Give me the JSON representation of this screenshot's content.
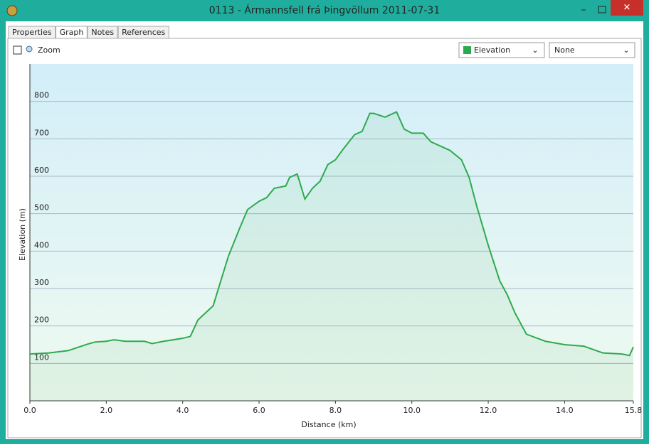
{
  "window": {
    "title": "0113 - Ármannsfell frá Þingvöllum 2011-07-31"
  },
  "tabs": [
    "Properties",
    "Graph",
    "Notes",
    "References"
  ],
  "toolbar": {
    "zoom": "Zoom",
    "series_select": "Elevation",
    "second_select": "None"
  },
  "chart_data": {
    "type": "line",
    "xlabel": "Distance  (km)",
    "ylabel": "Elevation (m)",
    "x": [
      0,
      0.5,
      1.0,
      1.5,
      1.7,
      2.0,
      2.2,
      2.5,
      3.0,
      3.2,
      3.5,
      4.0,
      4.2,
      4.4,
      4.8,
      5.0,
      5.2,
      5.5,
      5.7,
      6.0,
      6.2,
      6.4,
      6.7,
      6.8,
      7.0,
      7.2,
      7.4,
      7.6,
      7.8,
      8.0,
      8.2,
      8.5,
      8.7,
      8.9,
      9.0,
      9.3,
      9.6,
      9.8,
      10.0,
      10.3,
      10.5,
      11.0,
      11.3,
      11.5,
      11.7,
      12.0,
      12.3,
      12.5,
      12.7,
      13.0,
      13.5,
      14.0,
      14.5,
      15.0,
      15.5,
      15.7,
      15.8
    ],
    "series": [
      {
        "name": "Elevation",
        "color": "#2eaa4e",
        "values": [
          125,
          128,
          134,
          151,
          157,
          159,
          163,
          159,
          159,
          153,
          159,
          167,
          172,
          216,
          254,
          321,
          387,
          463,
          511,
          533,
          543,
          568,
          574,
          597,
          606,
          539,
          568,
          587,
          631,
          644,
          672,
          711,
          720,
          768,
          768,
          758,
          772,
          726,
          715,
          715,
          692,
          669,
          644,
          597,
          520,
          416,
          321,
          283,
          235,
          178,
          159,
          150,
          146,
          128,
          125,
          121,
          144
        ]
      }
    ],
    "xlim": [
      0,
      15.8
    ],
    "xticks": [
      {
        "value": 0,
        "label": "0.0"
      },
      {
        "value": 2,
        "label": "2.0"
      },
      {
        "value": 4,
        "label": "4.0"
      },
      {
        "value": 6,
        "label": "6.0"
      },
      {
        "value": 8,
        "label": "8.0"
      },
      {
        "value": 10,
        "label": "10.0"
      },
      {
        "value": 12,
        "label": "12.0"
      },
      {
        "value": 14,
        "label": "14.0"
      },
      15.8
    ],
    "ylim": [
      0,
      900
    ],
    "yticks": [
      100,
      200,
      300,
      400,
      500,
      600,
      700,
      800
    ],
    "grid": true
  }
}
